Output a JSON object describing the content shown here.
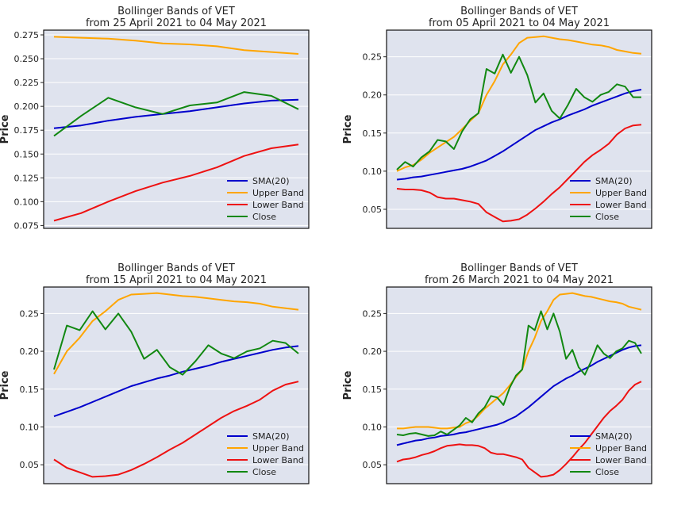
{
  "chart_data": [
    {
      "type": "line",
      "title": "Bollinger Bands of VET",
      "subtitle": "from 25 April 2021 to 04 May 2021",
      "ylabel": "Price",
      "ylim": [
        0.072,
        0.28
      ],
      "yticks": [
        0.075,
        0.1,
        0.125,
        0.15,
        0.175,
        0.2,
        0.225,
        0.25,
        0.275
      ],
      "ytick_labels": [
        "0.075",
        "0.100",
        "0.125",
        "0.150",
        "0.175",
        "0.200",
        "0.225",
        "0.250",
        "0.275"
      ],
      "grid": true,
      "legend_position": "lower-right",
      "series": [
        {
          "name": "SMA(20)",
          "color": "#0000cc",
          "values": [
            0.177,
            0.18,
            0.185,
            0.189,
            0.192,
            0.195,
            0.199,
            0.203,
            0.206,
            0.207
          ]
        },
        {
          "name": "Upper Band",
          "color": "#ffa500",
          "values": [
            0.273,
            0.272,
            0.271,
            0.269,
            0.266,
            0.265,
            0.263,
            0.259,
            0.257,
            0.255
          ]
        },
        {
          "name": "Lower Band",
          "color": "#ee1111",
          "values": [
            0.08,
            0.088,
            0.1,
            0.111,
            0.12,
            0.127,
            0.136,
            0.148,
            0.156,
            0.16
          ]
        },
        {
          "name": "Close",
          "color": "#118811",
          "values": [
            0.169,
            0.19,
            0.209,
            0.199,
            0.192,
            0.201,
            0.204,
            0.215,
            0.211,
            0.197
          ]
        }
      ]
    },
    {
      "type": "line",
      "title": "Bollinger Bands of VET",
      "subtitle": "from 05 April 2021 to 04 May 2021",
      "ylabel": "Price",
      "ylim": [
        0.025,
        0.285
      ],
      "yticks": [
        0.05,
        0.1,
        0.15,
        0.2,
        0.25
      ],
      "ytick_labels": [
        "0.05",
        "0.10",
        "0.15",
        "0.20",
        "0.25"
      ],
      "grid": true,
      "legend_position": "lower-right",
      "series": [
        {
          "name": "SMA(20)",
          "color": "#0000cc",
          "values": [
            0.089,
            0.09,
            0.092,
            0.093,
            0.095,
            0.097,
            0.099,
            0.101,
            0.103,
            0.106,
            0.11,
            0.114,
            0.12,
            0.126,
            0.133,
            0.14,
            0.147,
            0.154,
            0.159,
            0.164,
            0.168,
            0.173,
            0.177,
            0.181,
            0.186,
            0.19,
            0.194,
            0.198,
            0.202,
            0.205,
            0.207
          ]
        },
        {
          "name": "Upper Band",
          "color": "#ffa500",
          "values": [
            0.1,
            0.105,
            0.108,
            0.115,
            0.124,
            0.131,
            0.138,
            0.145,
            0.155,
            0.166,
            0.176,
            0.2,
            0.218,
            0.24,
            0.253,
            0.268,
            0.275,
            0.276,
            0.277,
            0.275,
            0.273,
            0.272,
            0.27,
            0.268,
            0.266,
            0.265,
            0.263,
            0.259,
            0.257,
            0.255,
            0.254
          ]
        },
        {
          "name": "Lower Band",
          "color": "#ee1111",
          "values": [
            0.077,
            0.076,
            0.076,
            0.075,
            0.072,
            0.066,
            0.064,
            0.064,
            0.062,
            0.06,
            0.057,
            0.046,
            0.04,
            0.034,
            0.035,
            0.037,
            0.043,
            0.051,
            0.06,
            0.07,
            0.079,
            0.09,
            0.101,
            0.112,
            0.121,
            0.128,
            0.136,
            0.148,
            0.156,
            0.16,
            0.161
          ]
        },
        {
          "name": "Close",
          "color": "#118811",
          "values": [
            0.102,
            0.112,
            0.106,
            0.118,
            0.126,
            0.141,
            0.139,
            0.129,
            0.152,
            0.168,
            0.176,
            0.234,
            0.228,
            0.253,
            0.229,
            0.25,
            0.226,
            0.19,
            0.202,
            0.179,
            0.169,
            0.187,
            0.208,
            0.197,
            0.191,
            0.2,
            0.204,
            0.214,
            0.211,
            0.197,
            0.197
          ]
        }
      ]
    },
    {
      "type": "line",
      "title": "Bollinger Bands of VET",
      "subtitle": "from 15 April 2021 to 04 May 2021",
      "ylabel": "Price",
      "ylim": [
        0.025,
        0.285
      ],
      "yticks": [
        0.05,
        0.1,
        0.15,
        0.2,
        0.25
      ],
      "ytick_labels": [
        "0.05",
        "0.10",
        "0.15",
        "0.20",
        "0.25"
      ],
      "grid": true,
      "legend_position": "lower-right",
      "series": [
        {
          "name": "SMA(20)",
          "color": "#0000cc",
          "values": [
            0.114,
            0.12,
            0.126,
            0.133,
            0.14,
            0.147,
            0.154,
            0.159,
            0.164,
            0.168,
            0.173,
            0.177,
            0.181,
            0.186,
            0.19,
            0.194,
            0.198,
            0.202,
            0.205,
            0.207
          ]
        },
        {
          "name": "Upper Band",
          "color": "#ffa500",
          "values": [
            0.17,
            0.2,
            0.218,
            0.24,
            0.253,
            0.268,
            0.275,
            0.276,
            0.277,
            0.275,
            0.273,
            0.272,
            0.27,
            0.268,
            0.266,
            0.265,
            0.263,
            0.259,
            0.257,
            0.255
          ]
        },
        {
          "name": "Lower Band",
          "color": "#ee1111",
          "values": [
            0.057,
            0.046,
            0.04,
            0.034,
            0.035,
            0.037,
            0.043,
            0.051,
            0.06,
            0.07,
            0.079,
            0.09,
            0.101,
            0.112,
            0.121,
            0.128,
            0.136,
            0.148,
            0.156,
            0.16
          ]
        },
        {
          "name": "Close",
          "color": "#118811",
          "values": [
            0.176,
            0.234,
            0.228,
            0.253,
            0.229,
            0.25,
            0.226,
            0.19,
            0.202,
            0.179,
            0.169,
            0.187,
            0.208,
            0.197,
            0.191,
            0.2,
            0.204,
            0.214,
            0.211,
            0.197
          ]
        }
      ]
    },
    {
      "type": "line",
      "title": "Bollinger Bands of VET",
      "subtitle": "from 26 March 2021 to 04 May 2021",
      "ylabel": "Price",
      "ylim": [
        0.025,
        0.285
      ],
      "yticks": [
        0.05,
        0.1,
        0.15,
        0.2,
        0.25
      ],
      "ytick_labels": [
        "0.05",
        "0.10",
        "0.15",
        "0.20",
        "0.25"
      ],
      "grid": true,
      "legend_position": "lower-right",
      "series": [
        {
          "name": "SMA(20)",
          "color": "#0000cc",
          "values": [
            0.076,
            0.078,
            0.08,
            0.082,
            0.083,
            0.085,
            0.086,
            0.088,
            0.089,
            0.09,
            0.092,
            0.093,
            0.095,
            0.097,
            0.099,
            0.101,
            0.103,
            0.106,
            0.11,
            0.114,
            0.12,
            0.126,
            0.133,
            0.14,
            0.147,
            0.154,
            0.159,
            0.164,
            0.168,
            0.173,
            0.177,
            0.181,
            0.186,
            0.19,
            0.194,
            0.198,
            0.202,
            0.205,
            0.207,
            0.208
          ]
        },
        {
          "name": "Upper Band",
          "color": "#ffa500",
          "values": [
            0.098,
            0.098,
            0.099,
            0.1,
            0.1,
            0.1,
            0.099,
            0.098,
            0.098,
            0.099,
            0.1,
            0.105,
            0.108,
            0.115,
            0.124,
            0.131,
            0.138,
            0.145,
            0.155,
            0.166,
            0.176,
            0.2,
            0.218,
            0.24,
            0.253,
            0.268,
            0.275,
            0.276,
            0.277,
            0.275,
            0.273,
            0.272,
            0.27,
            0.268,
            0.266,
            0.265,
            0.263,
            0.259,
            0.257,
            0.255
          ]
        },
        {
          "name": "Lower Band",
          "color": "#ee1111",
          "values": [
            0.054,
            0.057,
            0.058,
            0.06,
            0.063,
            0.065,
            0.068,
            0.072,
            0.075,
            0.076,
            0.077,
            0.076,
            0.076,
            0.075,
            0.072,
            0.066,
            0.064,
            0.064,
            0.062,
            0.06,
            0.057,
            0.046,
            0.04,
            0.034,
            0.035,
            0.037,
            0.043,
            0.051,
            0.06,
            0.07,
            0.079,
            0.09,
            0.101,
            0.112,
            0.121,
            0.128,
            0.136,
            0.148,
            0.156,
            0.16
          ]
        },
        {
          "name": "Close",
          "color": "#118811",
          "values": [
            0.09,
            0.089,
            0.091,
            0.092,
            0.09,
            0.088,
            0.089,
            0.094,
            0.09,
            0.096,
            0.102,
            0.112,
            0.106,
            0.118,
            0.126,
            0.141,
            0.139,
            0.129,
            0.152,
            0.168,
            0.176,
            0.234,
            0.228,
            0.253,
            0.229,
            0.25,
            0.226,
            0.19,
            0.202,
            0.179,
            0.169,
            0.187,
            0.208,
            0.197,
            0.191,
            0.2,
            0.204,
            0.214,
            0.211,
            0.197
          ]
        }
      ]
    }
  ]
}
